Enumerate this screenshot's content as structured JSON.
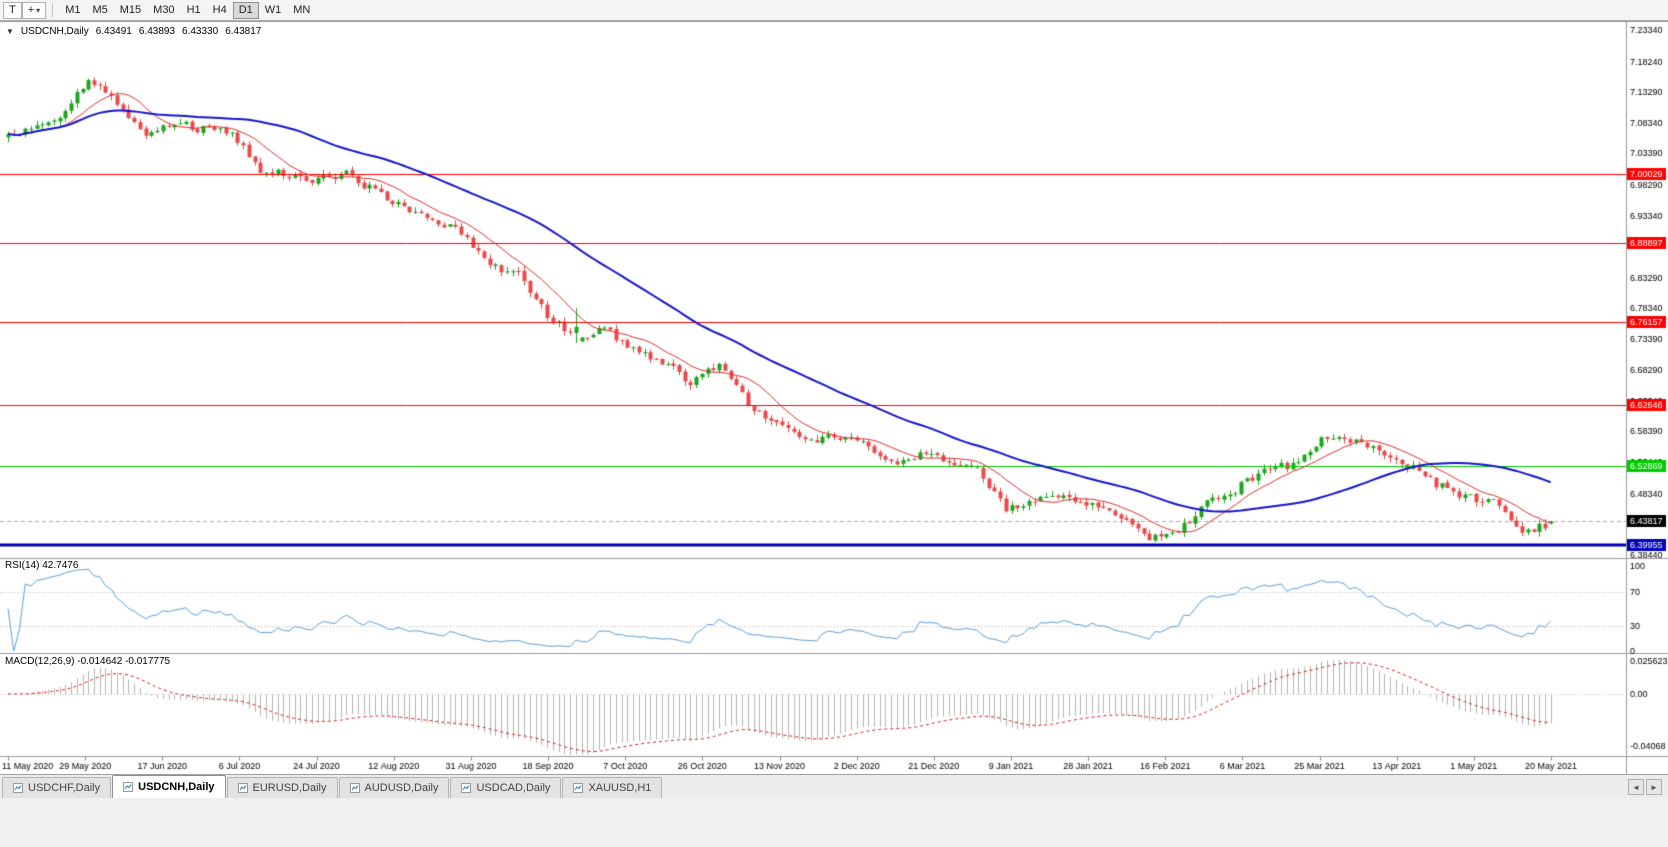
{
  "toolbar": {
    "tool_buttons": [
      {
        "glyph": "T"
      },
      {
        "glyph": "+",
        "dropdown": "▾"
      }
    ],
    "timeframes": [
      "M1",
      "M5",
      "M15",
      "M30",
      "H1",
      "H4",
      "D1",
      "W1",
      "MN"
    ],
    "active_timeframe": "D1"
  },
  "chart_header": {
    "collapse_icon": "▼",
    "symbol": "USDCNH,Daily",
    "open": "6.43491",
    "high": "6.43893",
    "low": "6.43330",
    "close": "6.43817"
  },
  "indicators": {
    "rsi_label": "RSI(14) 42.7476",
    "macd_label": "MACD(12,26,9) -0.014642 -0.017775"
  },
  "tabs": {
    "items": [
      "USDCHF,Daily",
      "USDCNH,Daily",
      "EURUSD,Daily",
      "AUDUSD,Daily",
      "USDCAD,Daily",
      "XAUUSD,H1"
    ],
    "active_index": 1,
    "scroll_left": "◄",
    "scroll_right": "►"
  },
  "chart_data": {
    "type": "candlestick",
    "symbol": "USDCNH",
    "timeframe": "Daily",
    "title": "USDCNH,Daily 6.43491 6.43893 6.43330 6.43817",
    "x_dates": [
      "11 May 2020",
      "29 May 2020",
      "17 Jun 2020",
      "6 Jul 2020",
      "24 Jul 2020",
      "12 Aug 2020",
      "31 Aug 2020",
      "18 Sep 2020",
      "7 Oct 2020",
      "26 Oct 2020",
      "13 Nov 2020",
      "2 Dec 2020",
      "21 Dec 2020",
      "9 Jan 2021",
      "28 Jan 2021",
      "16 Feb 2021",
      "6 Mar 2021",
      "25 Mar 2021",
      "13 Apr 2021",
      "1 May 2021",
      "20 May 2021"
    ],
    "y_axis_labels": [
      "7.23340",
      "7.18240",
      "7.13290",
      "7.08340",
      "7.03390",
      "6.98290",
      "6.93340",
      "6.88390",
      "6.83290",
      "6.78340",
      "6.73390",
      "6.68290",
      "6.63340",
      "6.58390",
      "6.53440",
      "6.48340",
      "6.43390",
      "6.38440"
    ],
    "price_scale": {
      "top": 7.245,
      "bottom": 6.379
    },
    "levels": [
      {
        "label": "7.00029",
        "value": 7.00029,
        "color": "#ff0000",
        "width": 1
      },
      {
        "label": "6.88897",
        "value": 6.88897,
        "color": "#ff0000",
        "width": 1
      },
      {
        "label": "6.76157",
        "value": 6.76157,
        "color": "#ff0000",
        "width": 1
      },
      {
        "label": "6.62646",
        "value": 6.62646,
        "color": "#ff0000",
        "width": 1
      },
      {
        "label": "6.52869",
        "value": 6.52869,
        "color": "#00cc00",
        "width": 1
      },
      {
        "label": "6.39955",
        "value": 6.39955,
        "color": "#0000b8",
        "width": 3
      }
    ],
    "current_price": {
      "value": 6.43817,
      "label": "6.43817",
      "color": "#000000"
    },
    "last_ohlc": {
      "open": 6.43491,
      "high": 6.43893,
      "low": 6.4333,
      "close": 6.43817
    },
    "first_open": 7.06,
    "candles_per_anchor": 5,
    "weekly_close_anchors": [
      7.075,
      7.095,
      7.155,
      7.115,
      7.065,
      7.085,
      7.072,
      7.068,
      7.005,
      6.998,
      6.99,
      7.002,
      6.972,
      6.95,
      6.925,
      6.908,
      6.85,
      6.838,
      6.77,
      6.735,
      6.75,
      6.72,
      6.695,
      6.665,
      6.69,
      6.63,
      6.595,
      6.565,
      6.578,
      6.57,
      6.532,
      6.546,
      6.538,
      6.525,
      6.46,
      6.473,
      6.48,
      6.468,
      6.44,
      6.41,
      6.42,
      6.47,
      6.49,
      6.52,
      6.53,
      6.572,
      6.568,
      6.55,
      6.53,
      6.5,
      6.48,
      6.468,
      6.42,
      6.435
    ],
    "spike": {
      "index": 99,
      "extra_high": 0.03
    },
    "candle_up_color": "#1fa51f",
    "candle_down_color": "#e94b4b",
    "moving_averages": [
      {
        "period": 10,
        "color": "#e03030",
        "width": 1
      },
      {
        "period": 40,
        "color": "#1515cd",
        "width": 2
      }
    ],
    "rsi": {
      "period": 14,
      "current": 42.7476,
      "color": "#5f9fd8",
      "guide_levels": [
        70,
        30
      ],
      "axis_labels": [
        "100",
        "70",
        "30",
        "0"
      ],
      "axis_values": [
        100,
        70,
        30,
        0
      ]
    },
    "macd": {
      "fast": 12,
      "slow": 26,
      "signal": 9,
      "current_macd": -0.014642,
      "current_signal": -0.017775,
      "scale_top": 0.025623,
      "scale_bottom": -0.04068,
      "axis_labels": [
        {
          "text": "0.025623",
          "value": 0.025623
        },
        {
          "text": "0.00",
          "value": 0
        },
        {
          "text": "-0.04068",
          "value": -0.04068
        }
      ],
      "hist_color": "#b4b4b4",
      "signal_color": "#d62222"
    }
  }
}
